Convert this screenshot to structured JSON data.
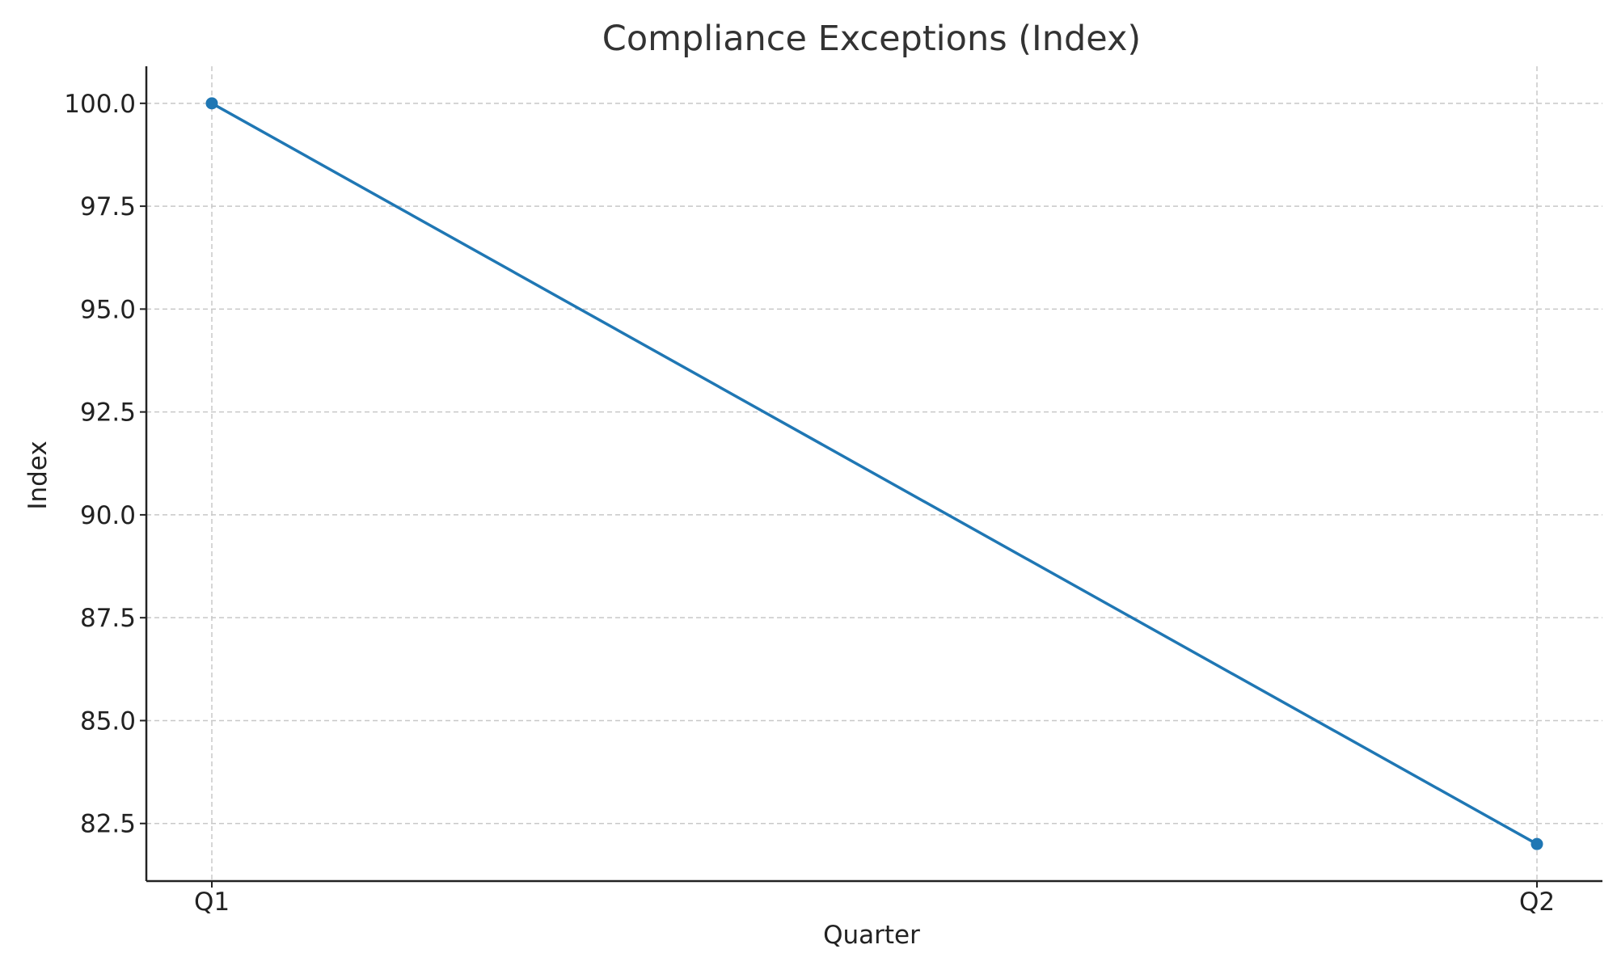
{
  "chart_data": {
    "type": "line",
    "title": "Compliance Exceptions (Index)",
    "xlabel": "Quarter",
    "ylabel": "Index",
    "categories": [
      "Q1",
      "Q2"
    ],
    "series": [
      {
        "values": [
          100.0,
          82.0
        ]
      }
    ],
    "ylim": [
      81.1,
      100.9
    ],
    "yticks": [
      82.5,
      85.0,
      87.5,
      90.0,
      92.5,
      95.0,
      97.5,
      100.0
    ],
    "ytick_labels": [
      "82.5",
      "85.0",
      "87.5",
      "90.0",
      "92.5",
      "95.0",
      "97.5",
      "100.0"
    ],
    "grid": true,
    "series_color": "#1f77b4",
    "marker": "circle"
  }
}
